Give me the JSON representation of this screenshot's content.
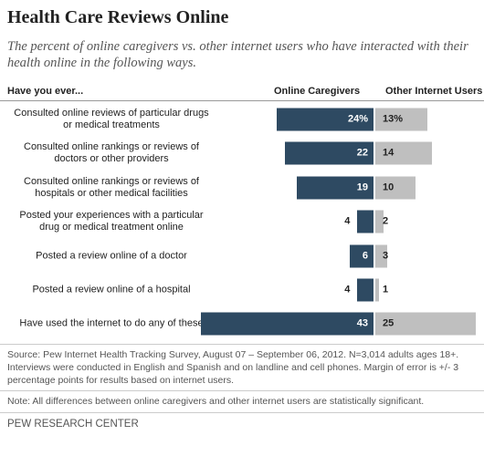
{
  "chart_data": {
    "type": "diverging-bar",
    "title": "Health Care Reviews Online",
    "subtitle": "The percent of online caregivers vs. other internet users who have interacted with their health online in the following ways.",
    "category_header": "Have you ever...",
    "categories": [
      "Consulted online reviews of particular drugs or medical treatments",
      "Consulted online rankings or reviews of doctors or other providers",
      "Consulted online rankings or reviews of hospitals or other medical facilities",
      "Posted your experiences with a particular drug or medical treatment online",
      "Posted a review online of a doctor",
      "Posted a review online of a hospital",
      "Have used the internet to do any of these"
    ],
    "series": [
      {
        "name": "Online Caregivers",
        "color": "#2e4a62",
        "values": [
          24,
          22,
          19,
          4,
          6,
          4,
          43
        ],
        "value_labels": [
          "24%",
          "22",
          "19",
          "4",
          "6",
          "4",
          "43"
        ]
      },
      {
        "name": "Other Internet Users",
        "color": "#bfbfbf",
        "values": [
          13,
          14,
          10,
          2,
          3,
          1,
          25
        ],
        "value_labels": [
          "13%",
          "14",
          "10",
          "2",
          "3",
          "1",
          "25"
        ]
      }
    ],
    "source": "Source: Pew Internet Health Tracking Survey, August 07 – September 06, 2012. N=3,014 adults ages 18+. Interviews were conducted in English and Spanish and on landline and cell phones.  Margin of error is +/- 3 percentage points for results based on internet users.",
    "note": "Note: All differences between online caregivers and other internet users are statistically significant.",
    "credit": "PEW RESEARCH CENTER"
  }
}
